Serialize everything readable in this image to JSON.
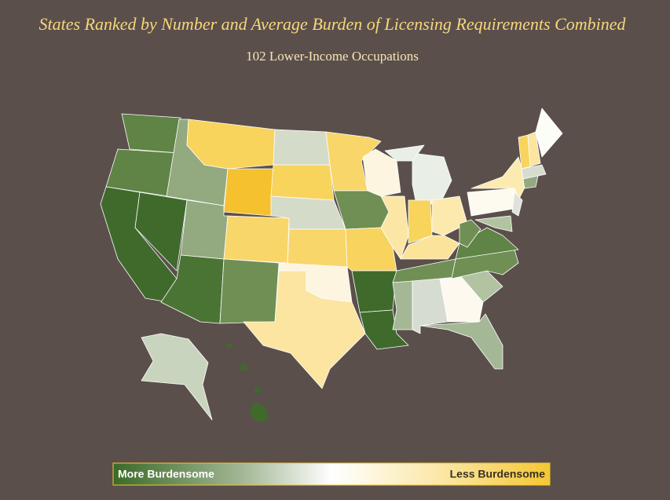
{
  "header": {
    "title": "States Ranked by Number and Average Burden of Licensing Requirements Combined",
    "subtitle": "102 Lower-Income Occupations"
  },
  "legend": {
    "left": "More Burdensome",
    "right": "Less Burdensome"
  }
}
